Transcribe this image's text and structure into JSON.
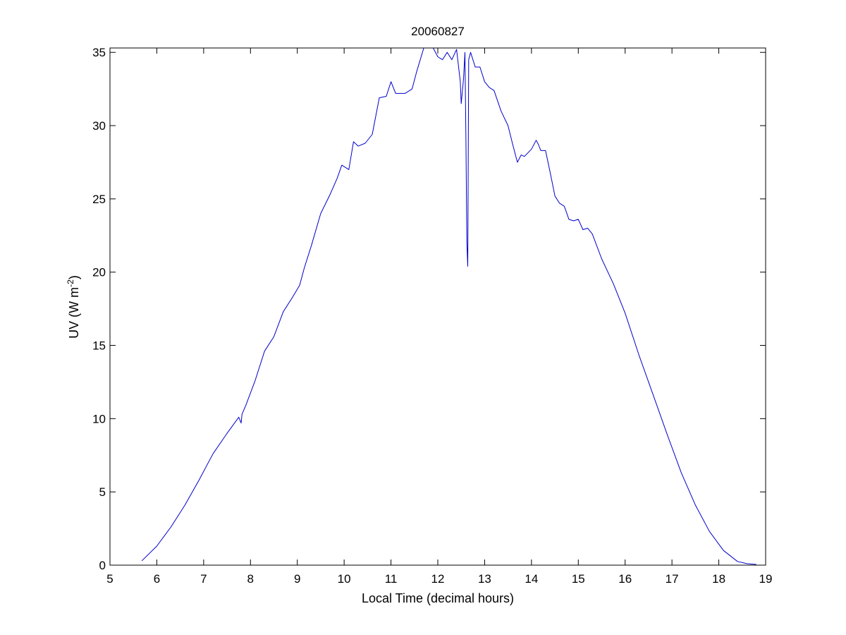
{
  "chart_data": {
    "type": "line",
    "title": "20060827",
    "xlabel": "Local Time (decimal hours)",
    "ylabel_main": "UV (W m",
    "ylabel_sup": "-2",
    "ylabel_close": ")",
    "xlim": [
      5,
      19
    ],
    "ylim": [
      0,
      35.3
    ],
    "xticks": [
      5,
      6,
      7,
      8,
      9,
      10,
      11,
      12,
      13,
      14,
      15,
      16,
      17,
      18,
      19
    ],
    "yticks": [
      0,
      5,
      10,
      15,
      20,
      25,
      30,
      35
    ],
    "grid": false,
    "series": [
      {
        "color": "#0000cc",
        "x": [
          5.68,
          6.0,
          6.3,
          6.6,
          6.9,
          7.2,
          7.5,
          7.75,
          7.8,
          7.82,
          7.9,
          8.1,
          8.3,
          8.5,
          8.7,
          8.9,
          9.05,
          9.15,
          9.3,
          9.5,
          9.7,
          9.85,
          9.95,
          10.1,
          10.2,
          10.3,
          10.45,
          10.6,
          10.75,
          10.9,
          11.0,
          11.1,
          11.3,
          11.45,
          11.55,
          11.7,
          11.9,
          12.0,
          12.1,
          12.2,
          12.3,
          12.4,
          12.48,
          12.5,
          12.55,
          12.58,
          12.6,
          12.62,
          12.64,
          12.66,
          12.7,
          12.8,
          12.9,
          13.0,
          13.1,
          13.2,
          13.35,
          13.5,
          13.6,
          13.7,
          13.78,
          13.85,
          14.0,
          14.1,
          14.15,
          14.2,
          14.3,
          14.4,
          14.5,
          14.6,
          14.7,
          14.8,
          14.9,
          15.0,
          15.1,
          15.2,
          15.3,
          15.5,
          15.75,
          16.0,
          16.3,
          16.6,
          16.9,
          17.2,
          17.5,
          17.8,
          18.1,
          18.4,
          18.6,
          18.8
        ],
        "y": [
          0.3,
          1.3,
          2.6,
          4.1,
          5.8,
          7.6,
          9.0,
          10.1,
          9.7,
          10.3,
          10.9,
          12.6,
          14.6,
          15.6,
          17.3,
          18.3,
          19.1,
          20.3,
          21.8,
          24.0,
          25.3,
          26.4,
          27.3,
          27.0,
          28.9,
          28.6,
          28.8,
          29.4,
          31.9,
          32.0,
          33.0,
          32.2,
          32.2,
          32.5,
          33.7,
          35.3,
          35.3,
          34.7,
          34.5,
          35.0,
          34.5,
          35.2,
          33.0,
          31.5,
          33.2,
          35.0,
          29.0,
          22.0,
          20.4,
          34.5,
          35.0,
          34.0,
          34.0,
          33.0,
          32.6,
          32.4,
          31.0,
          30.0,
          28.7,
          27.5,
          28.0,
          27.9,
          28.4,
          29.0,
          28.7,
          28.3,
          28.3,
          26.8,
          25.2,
          24.7,
          24.5,
          23.6,
          23.5,
          23.6,
          22.9,
          23.0,
          22.6,
          20.9,
          19.2,
          17.2,
          14.3,
          11.6,
          8.9,
          6.3,
          4.1,
          2.3,
          1.0,
          0.25,
          0.1,
          0.05
        ]
      }
    ]
  }
}
